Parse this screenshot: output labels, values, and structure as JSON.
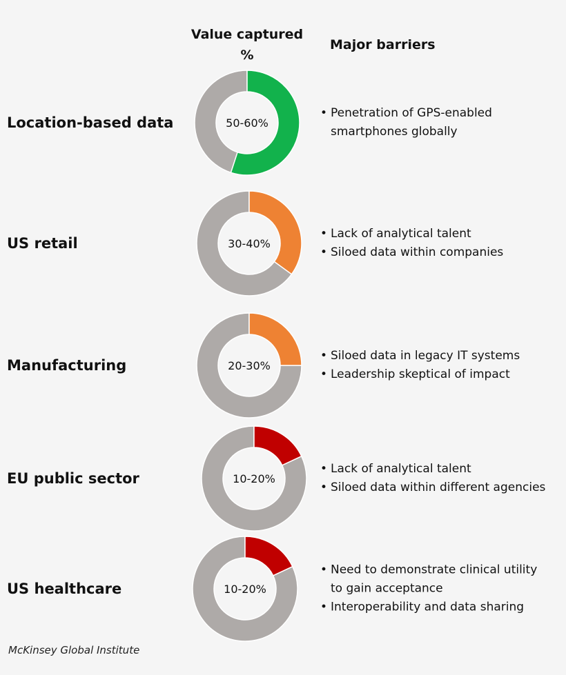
{
  "headers": {
    "value_captured": "Value captured %",
    "major_barriers": "Major barriers"
  },
  "colors": {
    "green": "#12b24c",
    "orange": "#ee8233",
    "red": "#c00000",
    "gray": "#aeaaa8"
  },
  "chart_data": {
    "type": "pie",
    "series_name": "Value captured %",
    "rows": [
      {
        "name": "Location-based data",
        "range_label": "50-60%",
        "value": 55,
        "color": "#12b24c",
        "barriers": [
          "Penetration of GPS-enabled smartphones globally"
        ]
      },
      {
        "name": "US retail",
        "range_label": "30-40%",
        "value": 35,
        "color": "#ee8233",
        "barriers": [
          "Lack of analytical talent",
          "Siloed data within companies"
        ]
      },
      {
        "name": "Manufacturing",
        "range_label": "20-30%",
        "value": 25,
        "color": "#ee8233",
        "barriers": [
          "Siloed data in legacy IT systems",
          "Leadership skeptical of impact"
        ]
      },
      {
        "name": "EU public sector",
        "range_label": "10-20%",
        "value": 18,
        "color": "#c00000",
        "barriers": [
          "Lack of analytical talent",
          "Siloed data within different agencies"
        ]
      },
      {
        "name": "US healthcare",
        "range_label": "10-20%",
        "value": 18,
        "color": "#c00000",
        "barriers": [
          "Need to demonstrate clinical utility to gain acceptance",
          "Interoperability and data sharing"
        ]
      }
    ]
  },
  "source": "McKinsey Global Institute"
}
